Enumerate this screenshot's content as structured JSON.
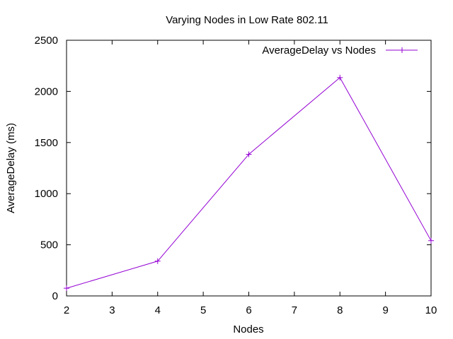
{
  "chart_data": {
    "type": "line",
    "title": "Varying Nodes in Low Rate 802.11",
    "xlabel": "Nodes",
    "ylabel": "AverageDelay (ms)",
    "xlim": [
      2,
      10
    ],
    "ylim": [
      0,
      2500
    ],
    "xticks": [
      "2",
      "3",
      "4",
      "5",
      "6",
      "7",
      "8",
      "9",
      "10"
    ],
    "yticks": [
      "0",
      "500",
      "1000",
      "1500",
      "2000",
      "2500"
    ],
    "grid": false,
    "legend_position": "top-right",
    "series": [
      {
        "name": "AverageDelay vs Nodes",
        "color": "#9400d3",
        "marker": "plus",
        "x": [
          2,
          4,
          6,
          8,
          10
        ],
        "y": [
          75,
          340,
          1385,
          2135,
          540
        ]
      }
    ]
  }
}
